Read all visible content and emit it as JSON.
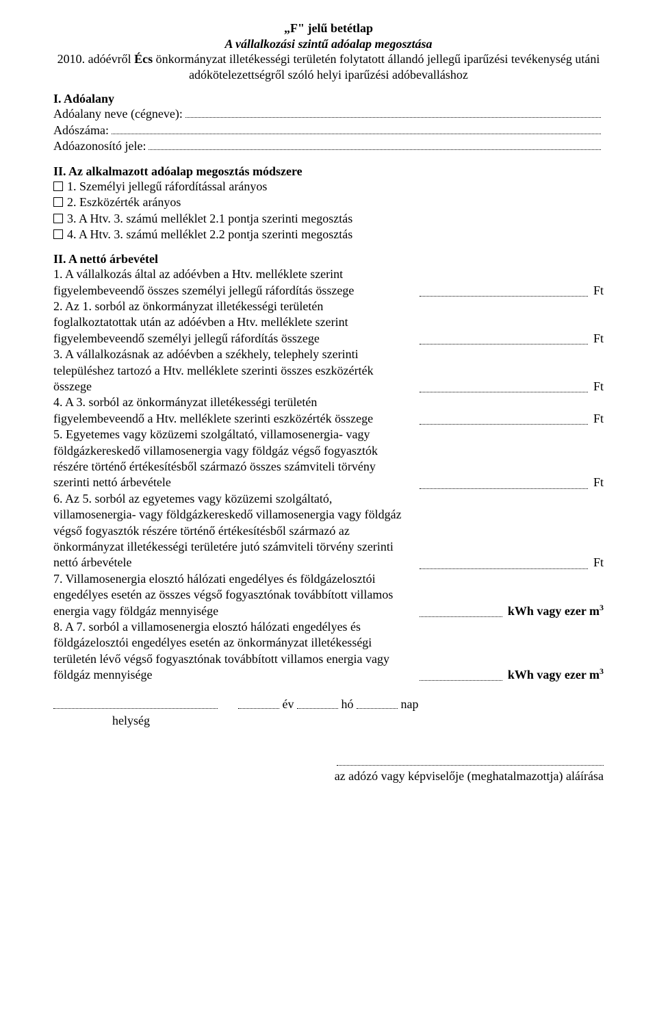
{
  "header": {
    "title": "„F\" jelű betétlap",
    "subtitle": "A vállalkozási szintű adóalap megosztása",
    "line1a": "2010. adóévről ",
    "line1b": "Écs",
    "line1c": " önkormányzat illetékességi területén folytatott állandó jellegű iparűzési tevékenység utáni adókötelezettségről szóló helyi iparűzési adóbevalláshoz"
  },
  "sectionI": {
    "title": "I. Adóalany",
    "row1": "Adóalany neve (cégneve):",
    "row2": "Adószáma:",
    "row3": "Adóazonosító jele:"
  },
  "sectionII": {
    "title": "II. Az alkalmazott adóalap megosztás módszere",
    "opt1": "1. Személyi jellegű ráfordítással arányos",
    "opt2": "2. Eszközérték arányos",
    "opt3": "3. A Htv. 3. számú melléklet 2.1 pontja szerinti megosztás",
    "opt4": "4. A Htv. 3. számú melléklet 2.2 pontja szerinti megosztás"
  },
  "sectionNetto": {
    "title": "II. A nettó árbevétel",
    "items": [
      {
        "txt": "1. A vállalkozás által az adóévben a Htv. melléklete szerint figyelembeveendő összes személyi jellegű ráfordítás összege",
        "unit": "Ft"
      },
      {
        "txt": "2. Az 1. sorból az önkormányzat illetékességi területén foglalkoztatottak után az adóévben a Htv. melléklete szerint figyelembeveendő személyi jellegű ráfordítás összege",
        "unit": "Ft"
      },
      {
        "txt": "3. A vállalkozásnak az adóévben a székhely, telephely szerinti településhez tartozó a Htv. melléklete szerinti összes eszközérték összege",
        "unit": "Ft"
      },
      {
        "txt": "4. A 3. sorból az önkormányzat illetékességi területén figyelembeveendő a Htv. melléklete szerinti eszközérték összege",
        "unit": "Ft"
      },
      {
        "txt": "5. Egyetemes vagy közüzemi szolgáltató, villamosenergia- vagy földgázkereskedő villamosenergia vagy földgáz végső fogyasztók részére történő értékesítésből származó összes számviteli törvény szerinti nettó árbevétele",
        "unit": "Ft"
      },
      {
        "txt": "6. Az 5. sorból az egyetemes vagy közüzemi szolgáltató, villamosenergia- vagy földgázkereskedő villamosenergia vagy földgáz végső fogyasztók részére történő értékesítésből származó az önkormányzat illetékességi területére jutó számviteli törvény szerinti nettó árbevétele",
        "unit": "Ft"
      },
      {
        "txt": "7. Villamosenergia elosztó hálózati engedélyes és földgázelosztói engedélyes esetén az összes végső fogyasztónak továbbított villamos energia vagy földgáz mennyisége",
        "unit": "kWh vagy ezer m"
      },
      {
        "txt": "8. A 7. sorból a villamosenergia elosztó hálózati engedélyes és földgázelosztói engedélyes esetén az önkormányzat illetékességi területén lévő végső fogyasztónak továbbított villamos energia vagy földgáz mennyisége",
        "unit": "kWh vagy ezer m"
      }
    ]
  },
  "footer": {
    "ev": " év ",
    "ho": " hó ",
    "nap": " nap",
    "helyseg": "helység",
    "sig": "az adózó vagy képviselője (meghatalmazottja) aláírása"
  }
}
